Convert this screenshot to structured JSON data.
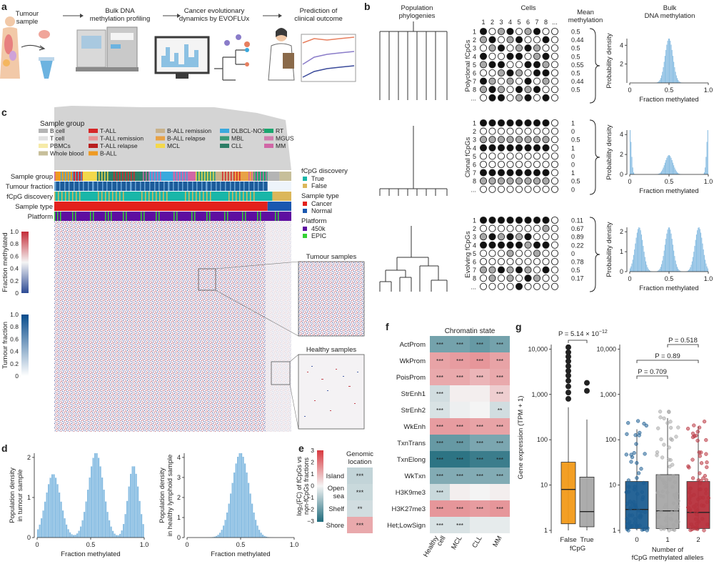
{
  "panel_a": {
    "letter": "a",
    "steps": [
      {
        "lines": [
          "Tumour",
          "sample"
        ]
      },
      {
        "lines": [
          "Bulk DNA",
          "methylation profiling"
        ]
      },
      {
        "lines": [
          "Cancer evolutionary",
          "dynamics by EVOFLUx"
        ]
      },
      {
        "lines": [
          "Prediction of",
          "clinical outcome"
        ]
      }
    ]
  },
  "panel_b": {
    "letter": "b",
    "header_phylogenies": [
      "Population",
      "phylogenies"
    ],
    "header_cells": "Cells",
    "header_mean": [
      "Mean",
      "methylation"
    ],
    "header_bulk": [
      "Bulk",
      "DNA methylation"
    ],
    "cell_cols": [
      "1",
      "2",
      "3",
      "4",
      "5",
      "6",
      "7",
      "8",
      "..."
    ],
    "row_labels": [
      "1",
      "2",
      "3",
      "4",
      "5",
      "6",
      "7",
      "8",
      "..."
    ],
    "groups": [
      {
        "label": "Polyclonal fCpGs",
        "means": [
          "0.5",
          "0.44",
          "0.5",
          "0.5",
          "0.55",
          "0.5",
          "0.44",
          "0.5"
        ],
        "xlabel": "Fraction methylated",
        "ylabel": "Probability density",
        "yticks": [
          "2",
          "4"
        ],
        "xticks": [
          "0",
          "0.5",
          "1.0"
        ],
        "peaks": [
          0.5
        ],
        "widths": [
          0.05
        ],
        "weights": [
          1
        ]
      },
      {
        "label": "Clonal fCpGs",
        "means": [
          "1",
          "0",
          "0.5",
          "1",
          "0",
          "0",
          "1",
          "0.5",
          "0"
        ],
        "xlabel": "Fraction methylated",
        "ylabel": "Probability density",
        "yticks": [
          "0",
          "2",
          "4"
        ],
        "xticks": [
          "0",
          "0.5",
          "1.0"
        ],
        "peaks": [
          0.0,
          0.5,
          1.0
        ],
        "widths": [
          0.02,
          0.05,
          0.02
        ],
        "weights": [
          1,
          0.42,
          1
        ]
      },
      {
        "label": "Evolving fCpGs",
        "means": [
          "0.11",
          "0.67",
          "0.89",
          "0.22",
          "0",
          "0.78",
          "0.5",
          "0.17"
        ],
        "xlabel": "Fraction methylated",
        "ylabel": "Probability density",
        "yticks": [
          "0",
          "1",
          "2"
        ],
        "xticks": [
          "0",
          "0.5",
          "1.0"
        ],
        "peaks": [
          0.12,
          0.5,
          0.88
        ],
        "widths": [
          0.05,
          0.05,
          0.05
        ],
        "weights": [
          1,
          1,
          1
        ]
      }
    ]
  },
  "panel_c": {
    "letter": "c",
    "legend_title": "Sample group",
    "legend_items": [
      {
        "label": "B cell",
        "color": "#b4b4b4"
      },
      {
        "label": "T cell",
        "color": "#e0e0e0"
      },
      {
        "label": "PBMCs",
        "color": "#f6eba8"
      },
      {
        "label": "Whole blood",
        "color": "#c7bf9a"
      },
      {
        "label": "T-ALL",
        "color": "#d62728"
      },
      {
        "label": "T-ALL remission",
        "color": "#e99494"
      },
      {
        "label": "T-ALL relapse",
        "color": "#b81f1f"
      },
      {
        "label": "B-ALL",
        "color": "#ee9a22"
      },
      {
        "label": "B-ALL remission",
        "color": "#c9b28a"
      },
      {
        "label": "B-ALL relapse",
        "color": "#e8a246"
      },
      {
        "label": "MCL",
        "color": "#f3d84b"
      },
      {
        "label": "DLBCL-NOS",
        "color": "#3aa9dd"
      },
      {
        "label": "MBL",
        "color": "#3a9a78"
      },
      {
        "label": "CLL",
        "color": "#2c7d66"
      },
      {
        "label": "RT",
        "color": "#1aa66f"
      },
      {
        "label": "MGUS",
        "color": "#cf7fae"
      },
      {
        "label": "MM",
        "color": "#d067a6"
      }
    ],
    "track_labels": [
      "Sample group",
      "Tumour fraction",
      "fCpG discovery",
      "Sample type",
      "Platform"
    ],
    "legend2": [
      {
        "title": "fCpG discovery",
        "items": [
          {
            "label": "True",
            "color": "#19b6a8"
          },
          {
            "label": "False",
            "color": "#dbb75a"
          }
        ]
      },
      {
        "title": "Sample type",
        "items": [
          {
            "label": "Cancer",
            "color": "#e3211c"
          },
          {
            "label": "Normal",
            "color": "#1a57b0"
          }
        ]
      },
      {
        "title": "Platform",
        "items": [
          {
            "label": "450k",
            "color": "#5e0ea0"
          },
          {
            "label": "EPIC",
            "color": "#34d134"
          }
        ]
      }
    ],
    "colorbar1": {
      "title": "Fraction methylated",
      "ticks": [
        "1.0",
        "0.8",
        "0.6",
        "0.4",
        "0.2",
        "0"
      ]
    },
    "colorbar2": {
      "title": "Tumour fraction",
      "ticks": [
        "1.0",
        "0.8",
        "0.6",
        "0.4",
        "0.2",
        "0"
      ]
    },
    "zoom1": "Tumour samples",
    "zoom2": "Healthy samples"
  },
  "panel_d": {
    "letter": "d",
    "plots": [
      {
        "ylabel": [
          "Population density",
          "in tumour sample"
        ],
        "xlabel": "Fraction methylated",
        "yticks": [
          "0",
          "1",
          "2"
        ],
        "xticks": [
          "0",
          "0.5",
          "1.0"
        ],
        "peaks": [
          0.15,
          0.55,
          0.9
        ],
        "widths": [
          0.07,
          0.07,
          0.05
        ],
        "weights": [
          0.75,
          1.0,
          0.85
        ]
      },
      {
        "ylabel": [
          "Population density",
          "in healthy lymphoid sample"
        ],
        "xlabel": "Fraction methylated",
        "yticks": [
          "0",
          "1",
          "2",
          "3",
          "4"
        ],
        "xticks": [
          "0",
          "0.5",
          "1.0"
        ],
        "peaks": [
          0.5
        ],
        "widths": [
          0.08
        ],
        "weights": [
          1
        ]
      }
    ]
  },
  "panel_e": {
    "letter": "e",
    "title": [
      "Genomic",
      "location"
    ],
    "ylabel": [
      "log₂(FC) of fCpGs vs",
      "non-fCpGs fractions"
    ],
    "ticks": [
      "3",
      "2",
      "1",
      "0",
      "−1",
      "−2",
      "−3"
    ],
    "rows": [
      {
        "label": "Island",
        "value": -0.7,
        "stars": "***"
      },
      {
        "label": "Open sea",
        "value": -0.6,
        "stars": "***"
      },
      {
        "label": "Shelf",
        "value": -0.5,
        "stars": "**"
      },
      {
        "label": "Shore",
        "value": 1.2,
        "stars": "***"
      }
    ]
  },
  "panel_f": {
    "letter": "f",
    "title": "Chromatin state",
    "columns": [
      "Healthy cell",
      "MCL",
      "CLL",
      "MM"
    ],
    "rows": [
      {
        "label": "ActProm",
        "values": [
          -1.8,
          -1.8,
          -2.0,
          -1.8
        ],
        "stars": [
          "***",
          "***",
          "***",
          "***"
        ]
      },
      {
        "label": "WkProm",
        "values": [
          1.3,
          1.4,
          1.5,
          1.3
        ],
        "stars": [
          "***",
          "***",
          "***",
          "***"
        ]
      },
      {
        "label": "PoisProm",
        "values": [
          1.2,
          1.2,
          1.0,
          1.2
        ],
        "stars": [
          "***",
          "***",
          "***",
          "***"
        ]
      },
      {
        "label": "StrEnh1",
        "values": [
          -0.5,
          0.1,
          0.1,
          0.6
        ],
        "stars": [
          "***",
          "",
          "",
          "***"
        ]
      },
      {
        "label": "StrEnh2",
        "values": [
          -0.4,
          -0.1,
          0.0,
          -0.5
        ],
        "stars": [
          "***",
          "",
          "",
          "**"
        ]
      },
      {
        "label": "WkEnh",
        "values": [
          1.4,
          1.4,
          1.3,
          1.3
        ],
        "stars": [
          "***",
          "***",
          "***",
          "***"
        ]
      },
      {
        "label": "TxnTrans",
        "values": [
          -2.0,
          -2.0,
          -1.7,
          -1.7
        ],
        "stars": [
          "***",
          "***",
          "***",
          "***"
        ]
      },
      {
        "label": "TxnElong",
        "values": [
          -2.8,
          -2.8,
          -2.6,
          -2.6
        ],
        "stars": [
          "***",
          "***",
          "***",
          "***"
        ]
      },
      {
        "label": "WkTxn",
        "values": [
          -1.6,
          -1.6,
          -1.6,
          -1.6
        ],
        "stars": [
          "***",
          "***",
          "***",
          "***"
        ]
      },
      {
        "label": "H3K9me3",
        "values": [
          -0.6,
          0.1,
          0.0,
          0.1
        ],
        "stars": [
          "***",
          "",
          "",
          ""
        ]
      },
      {
        "label": "H3K27me3",
        "values": [
          1.5,
          1.5,
          1.4,
          1.5
        ],
        "stars": [
          "***",
          "***",
          "***",
          "***"
        ]
      },
      {
        "label": "Het;LowSign",
        "values": [
          -0.4,
          -0.4,
          -0.2,
          -0.2
        ],
        "stars": [
          "***",
          "***",
          "",
          ""
        ]
      }
    ]
  },
  "panel_g": {
    "letter": "g",
    "ylabel": "Gene expression (TPM + 1)",
    "yticks": [
      "1",
      "10",
      "100",
      "1,000",
      "10,000"
    ],
    "left": {
      "xlabel": "fCpG",
      "pvalue_prefix": "P = 5.14 × 10",
      "pvalue_exp": "−12",
      "boxes": [
        {
          "label": "False",
          "q1": 1.4,
          "median": 8,
          "q3": 32,
          "whisker_low": 1,
          "whisker_high": 520,
          "color": "#f39a1a",
          "outliers": [
            800,
            1100,
            1500,
            2000,
            2600,
            3300,
            4200,
            5400,
            6800,
            8500,
            11000
          ]
        },
        {
          "label": "True",
          "q1": 1.2,
          "median": 2.6,
          "q3": 15,
          "whisker_low": 1,
          "whisker_high": 280,
          "color": "#a8a8a8",
          "outliers": [
            1200,
            1800
          ]
        }
      ]
    },
    "right": {
      "xlabel": [
        "Number of",
        "fCpG methylated alleles"
      ],
      "pvalues": [
        "P = 0.709",
        "P = 0.89",
        "P = 0.518"
      ],
      "boxes": [
        {
          "label": "0",
          "q1": 1.1,
          "median": 2.9,
          "q3": 12,
          "whisker_low": 1,
          "whisker_high": 170,
          "color": "#1c5d92"
        },
        {
          "label": "1",
          "q1": 1.1,
          "median": 2.7,
          "q3": 17,
          "whisker_low": 1,
          "whisker_high": 300,
          "color": "#a8a8a8"
        },
        {
          "label": "2",
          "q1": 1.1,
          "median": 2.5,
          "q3": 12,
          "whisker_low": 1,
          "whisker_high": 200,
          "color": "#b8313d"
        }
      ]
    }
  }
}
